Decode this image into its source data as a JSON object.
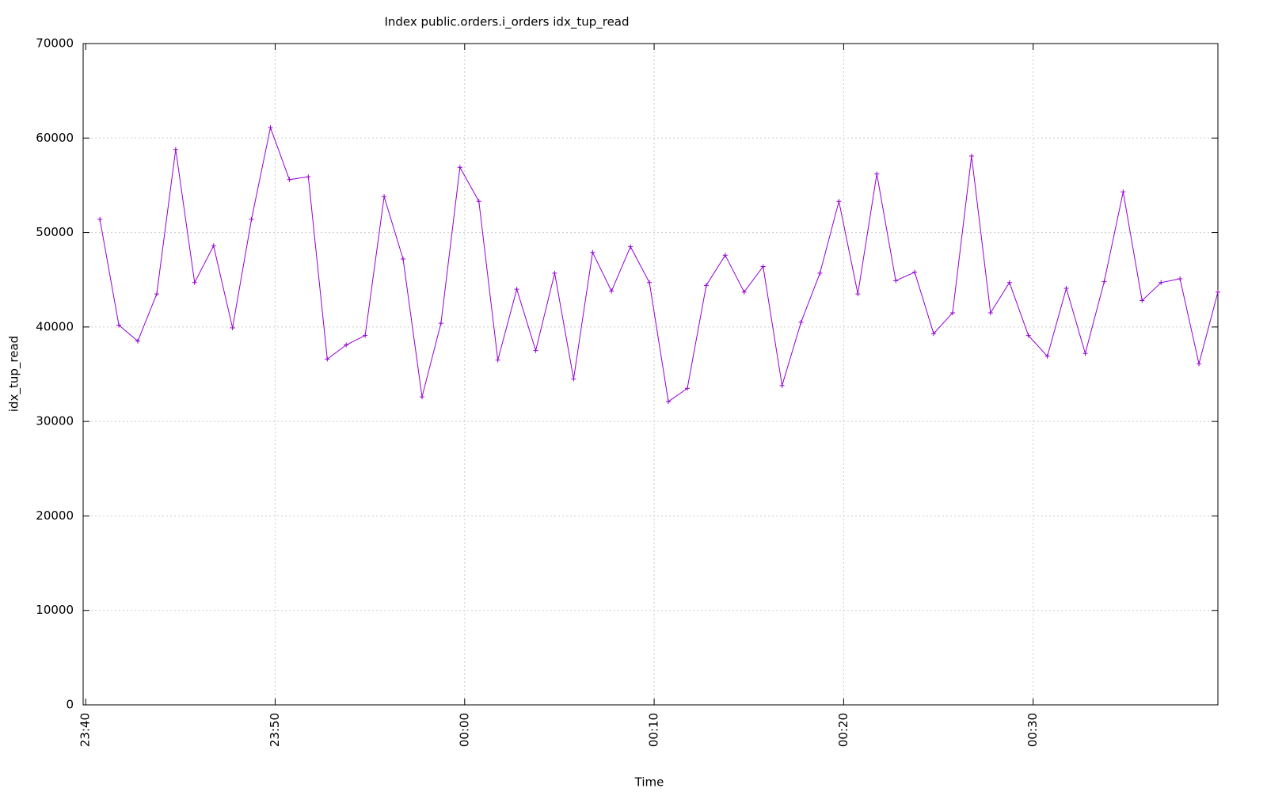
{
  "chart_data": {
    "type": "line",
    "title": "Index public.orders.i_orders idx_tup_read",
    "x_label": "Time",
    "y_label": "idx_tup_read",
    "x": [
      "23:40:45",
      "23:41:45",
      "23:42:45",
      "23:43:45",
      "23:44:45",
      "23:45:45",
      "23:46:45",
      "23:47:45",
      "23:48:45",
      "23:49:45",
      "23:50:45",
      "23:51:45",
      "23:52:45",
      "23:53:45",
      "23:54:45",
      "23:55:45",
      "23:56:45",
      "23:57:45",
      "23:58:45",
      "23:59:45",
      "00:00:45",
      "00:01:45",
      "00:02:45",
      "00:03:45",
      "00:04:45",
      "00:05:45",
      "00:06:45",
      "00:07:45",
      "00:08:45",
      "00:09:45",
      "00:10:45",
      "00:11:45",
      "00:12:45",
      "00:13:45",
      "00:14:45",
      "00:15:45",
      "00:16:45",
      "00:17:45",
      "00:18:45",
      "00:19:45",
      "00:20:45",
      "00:21:45",
      "00:22:45",
      "00:23:45",
      "00:24:45",
      "00:25:45",
      "00:26:45",
      "00:27:45",
      "00:28:45",
      "00:29:45",
      "00:30:45",
      "00:31:45",
      "00:32:45",
      "00:33:45",
      "00:34:45",
      "00:35:45",
      "00:36:45",
      "00:37:45",
      "00:38:45",
      "00:39:45"
    ],
    "series": [
      {
        "name": "idx_tup_read",
        "color": "#9400d3",
        "values": [
          51400,
          40200,
          38500,
          43500,
          58800,
          44700,
          48600,
          39900,
          51400,
          61100,
          55600,
          55900,
          36600,
          38100,
          39100,
          53800,
          47200,
          32600,
          40400,
          56900,
          53300,
          36500,
          44000,
          37500,
          45700,
          34500,
          47900,
          43800,
          48500,
          44700,
          32100,
          33500,
          44400,
          47600,
          43700,
          46400,
          33800,
          40500,
          45700,
          53300,
          43500,
          56200,
          44900,
          45800,
          39300,
          41500,
          58100,
          41500,
          44700,
          39100,
          36900,
          44100,
          37200,
          44800,
          54300,
          42800,
          44700,
          45100,
          36100,
          43700
        ]
      }
    ],
    "xlim": [
      "23:39:52",
      "00:39:45"
    ],
    "xticks": [
      "23:40",
      "23:50",
      "00:00",
      "00:10",
      "00:20",
      "00:30"
    ],
    "ylim": [
      0,
      70000
    ],
    "yticks": [
      0,
      10000,
      20000,
      30000,
      40000,
      50000,
      60000,
      70000
    ],
    "grid": true
  }
}
